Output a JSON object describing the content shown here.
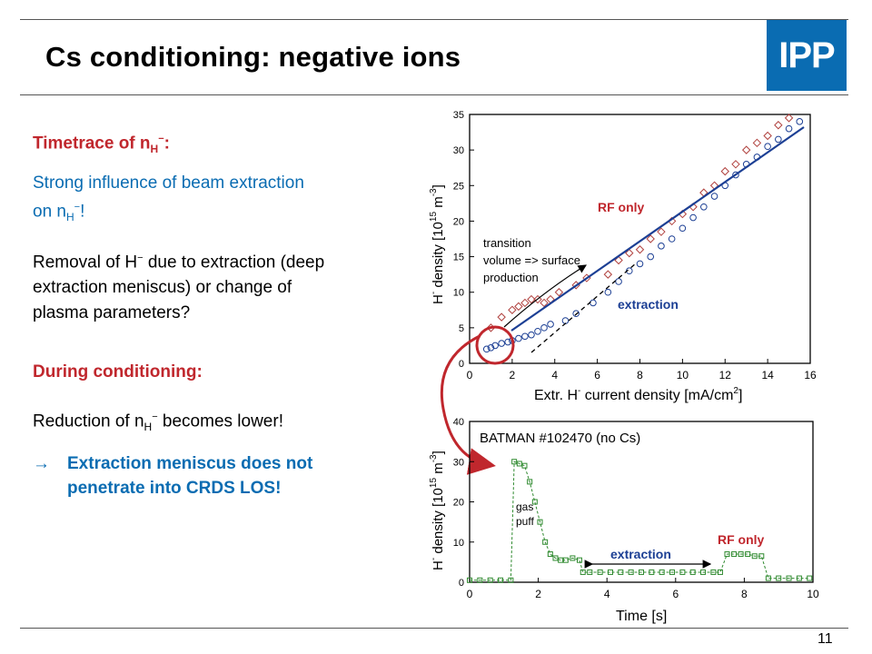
{
  "slide": {
    "title": "Cs conditioning: negative ions",
    "logo_text": "IPP",
    "page_number": "11"
  },
  "left": {
    "heading1": "Timetrace of n",
    "heading1_sub": "H",
    "heading1_sup": "−",
    "heading1_end": ":",
    "influence_line1": "Strong influence of beam extraction",
    "influence_line2": "on n",
    "influence_sub": "H",
    "influence_sup": "−",
    "influence_end": "!",
    "removal_a": "Removal of H",
    "removal_sup": "−",
    "removal_b": " due to extraction (deep",
    "removal_line2": "extraction meniscus) or change of",
    "removal_line3": "plasma parameters?",
    "heading2": "During conditioning:",
    "reduction_a": "Reduction of n",
    "reduction_sub": "H",
    "reduction_sup": "−",
    "reduction_b": " becomes lower!",
    "arrow": "→",
    "conclusion_line1": "Extraction meniscus does not",
    "conclusion_line2": "penetrate into CRDS LOS!"
  },
  "colors": {
    "heading_red": "#c0272d",
    "text_blue": "#0a6cb2",
    "rf_marker": "#b0413e",
    "extraction_marker": "#1c3f94",
    "timetrace_green": "#2f8a2f",
    "logo_bg": "#0a6cb2"
  },
  "chart_data": [
    {
      "type": "scatter",
      "xlabel": "Extr. H",
      "xlabel_sup": "-",
      "xlabel_end": " current density [mA/cm",
      "xlabel_sup2": "2",
      "xlabel_close": "]",
      "ylabel": "H",
      "ylabel_sup": "-",
      "ylabel_mid": " density [10",
      "ylabel_sup2": "15",
      "ylabel_end": " m",
      "ylabel_sup3": "-3",
      "ylabel_close": "]",
      "xlim": [
        0,
        16
      ],
      "ylim": [
        0,
        35
      ],
      "xticks": [
        "0",
        "2",
        "4",
        "6",
        "8",
        "10",
        "12",
        "14",
        "16"
      ],
      "yticks": [
        "0",
        "5",
        "10",
        "15",
        "20",
        "25",
        "30",
        "35"
      ],
      "annotations": {
        "rf_only": "RF only",
        "extraction": "extraction",
        "transition1": "transition",
        "transition2": "volume => surface",
        "transition3": "production"
      },
      "series": [
        {
          "marker": "diamond",
          "x": [
            1.0,
            1.5,
            2.0,
            2.3,
            2.6,
            2.9,
            3.2,
            3.5,
            3.8,
            4.2,
            5.0,
            5.5,
            6.5,
            7.0,
            7.5,
            8.0,
            8.5,
            9.0,
            9.5,
            10.0,
            10.5,
            11.0,
            11.5,
            12.0,
            12.5,
            13.0,
            13.5,
            14.0,
            14.5,
            15.0
          ],
          "y": [
            5.0,
            6.5,
            7.5,
            8.0,
            8.5,
            9.0,
            9.0,
            8.5,
            9.0,
            10.0,
            11.0,
            12.0,
            12.5,
            14.5,
            15.5,
            16.0,
            17.5,
            18.5,
            20.0,
            21.0,
            22.0,
            24.0,
            25.0,
            27.0,
            28.0,
            30.0,
            31.0,
            32.0,
            33.5,
            34.5
          ]
        },
        {
          "marker": "circle",
          "x": [
            0.8,
            1.0,
            1.2,
            1.5,
            1.8,
            2.0,
            2.3,
            2.6,
            2.9,
            3.2,
            3.5,
            3.8,
            4.5,
            5.0,
            5.8,
            6.5,
            7.0,
            7.5,
            8.0,
            8.5,
            9.0,
            9.5,
            10.0,
            10.5,
            11.0,
            11.5,
            12.0,
            12.5,
            13.0,
            13.5,
            14.0,
            14.5,
            15.0,
            15.5
          ],
          "y": [
            2.0,
            2.2,
            2.5,
            2.8,
            3.0,
            3.2,
            3.5,
            3.8,
            4.0,
            4.5,
            5.0,
            5.5,
            6.0,
            7.0,
            8.5,
            10.0,
            11.5,
            13.0,
            14.0,
            15.0,
            16.5,
            17.5,
            19.0,
            20.5,
            22.0,
            23.5,
            25.0,
            26.5,
            28.0,
            29.0,
            30.5,
            31.5,
            33.0,
            34.0
          ]
        }
      ]
    },
    {
      "type": "line",
      "title": "BATMAN #102470 (no Cs)",
      "xlabel": "Time [s]",
      "ylabel": "H",
      "ylabel_sup": "-",
      "ylabel_mid": " density [10",
      "ylabel_sup2": "15",
      "ylabel_end": " m",
      "ylabel_sup3": "-3",
      "ylabel_close": "]",
      "xlim": [
        0,
        10
      ],
      "ylim": [
        0,
        40
      ],
      "xticks": [
        "0",
        "2",
        "4",
        "6",
        "8",
        "10"
      ],
      "yticks": [
        "0",
        "10",
        "20",
        "30",
        "40"
      ],
      "annotations": {
        "gas1": "gas",
        "gas2": "puff",
        "extraction": "extraction",
        "rf_only": "RF only"
      },
      "x": [
        0.0,
        0.3,
        0.6,
        0.9,
        1.2,
        1.3,
        1.45,
        1.6,
        1.75,
        1.9,
        2.05,
        2.2,
        2.35,
        2.5,
        2.65,
        2.8,
        3.0,
        3.2,
        3.3,
        3.5,
        3.8,
        4.1,
        4.4,
        4.7,
        5.0,
        5.3,
        5.6,
        5.9,
        6.2,
        6.5,
        6.8,
        7.1,
        7.3,
        7.5,
        7.7,
        7.9,
        8.1,
        8.3,
        8.5,
        8.7,
        9.0,
        9.3,
        9.6,
        9.9
      ],
      "y": [
        0.5,
        0.5,
        0.5,
        0.5,
        0.5,
        30.0,
        29.5,
        29.0,
        25.0,
        20.0,
        15.0,
        10.0,
        7.0,
        6.0,
        5.5,
        5.5,
        6.0,
        5.5,
        2.5,
        2.5,
        2.5,
        2.5,
        2.5,
        2.5,
        2.5,
        2.5,
        2.5,
        2.5,
        2.5,
        2.5,
        2.5,
        2.5,
        2.5,
        7.0,
        7.0,
        7.0,
        7.0,
        6.5,
        6.5,
        1.0,
        1.0,
        1.0,
        1.0,
        1.0
      ]
    }
  ]
}
